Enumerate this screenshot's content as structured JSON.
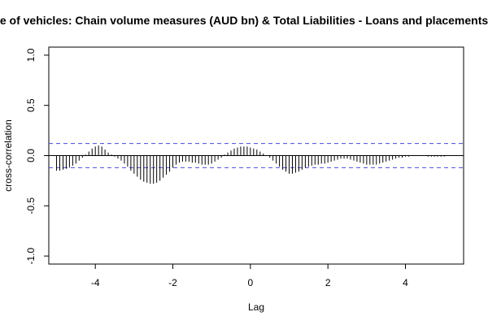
{
  "chart_data": {
    "type": "bar",
    "title": "e of vehicles: Chain volume measures (AUD bn) & Total Liabilities - Loans and placements",
    "xlabel": "Lag",
    "ylabel": "cross-correlation",
    "xlim": [
      -5.2,
      5.5
    ],
    "ylim": [
      -1.08,
      1.08
    ],
    "x_ticks": [
      -4,
      -2,
      0,
      2,
      4
    ],
    "x_tick_labels": [
      "-4",
      "-2",
      "0",
      "2",
      "4"
    ],
    "y_ticks": [
      -1.0,
      -0.5,
      0.0,
      0.5,
      1.0
    ],
    "y_tick_labels": [
      "-1.0",
      "-0.5",
      "0.0",
      "0.5",
      "1.0"
    ],
    "confidence_bound": 0.12,
    "zero_line": true,
    "colors": {
      "bars": "#000000",
      "confidence_lines": "#4a4adb",
      "zero_line": "#000000",
      "frame": "#000000"
    },
    "series": [
      {
        "x": [
          -5.0,
          -4.917,
          -4.833,
          -4.75,
          -4.667,
          -4.583,
          -4.5,
          -4.417,
          -4.333,
          -4.25,
          -4.167,
          -4.083,
          -4.0,
          -3.917,
          -3.833,
          -3.75,
          -3.667,
          -3.583,
          -3.5,
          -3.417,
          -3.333,
          -3.25,
          -3.167,
          -3.083,
          -3.0,
          -2.917,
          -2.833,
          -2.75,
          -2.667,
          -2.583,
          -2.5,
          -2.417,
          -2.333,
          -2.25,
          -2.167,
          -2.083,
          -2.0,
          -1.917,
          -1.833,
          -1.75,
          -1.667,
          -1.583,
          -1.5,
          -1.417,
          -1.333,
          -1.25,
          -1.167,
          -1.083,
          -1.0,
          -0.917,
          -0.833,
          -0.75,
          -0.667,
          -0.583,
          -0.5,
          -0.417,
          -0.333,
          -0.25,
          -0.167,
          -0.083,
          0.0,
          0.083,
          0.167,
          0.25,
          0.333,
          0.417,
          0.5,
          0.583,
          0.667,
          0.75,
          0.833,
          0.917,
          1.0,
          1.083,
          1.167,
          1.25,
          1.333,
          1.417,
          1.5,
          1.583,
          1.667,
          1.75,
          1.833,
          1.917,
          2.0,
          2.083,
          2.167,
          2.25,
          2.333,
          2.417,
          2.5,
          2.583,
          2.667,
          2.75,
          2.833,
          2.917,
          3.0,
          3.083,
          3.167,
          3.25,
          3.333,
          3.417,
          3.5,
          3.583,
          3.667,
          3.75,
          3.833,
          3.917,
          4.0,
          4.083,
          4.167,
          4.25,
          4.333,
          4.417,
          4.5,
          4.583,
          4.667,
          4.75,
          4.833,
          4.917,
          5.0
        ],
        "values": [
          -0.15,
          -0.15,
          -0.14,
          -0.13,
          -0.12,
          -0.1,
          -0.08,
          -0.05,
          -0.02,
          0.01,
          0.04,
          0.07,
          0.09,
          0.1,
          0.09,
          0.06,
          0.03,
          0.01,
          -0.01,
          -0.03,
          -0.05,
          -0.08,
          -0.11,
          -0.15,
          -0.18,
          -0.21,
          -0.24,
          -0.26,
          -0.27,
          -0.28,
          -0.28,
          -0.27,
          -0.25,
          -0.22,
          -0.19,
          -0.16,
          -0.12,
          -0.09,
          -0.07,
          -0.06,
          -0.06,
          -0.06,
          -0.07,
          -0.07,
          -0.08,
          -0.09,
          -0.09,
          -0.09,
          -0.08,
          -0.06,
          -0.04,
          -0.02,
          0.01,
          0.03,
          0.05,
          0.07,
          0.08,
          0.09,
          0.09,
          0.09,
          0.08,
          0.07,
          0.06,
          0.04,
          0.02,
          0.0,
          -0.02,
          -0.05,
          -0.08,
          -0.11,
          -0.14,
          -0.16,
          -0.18,
          -0.18,
          -0.17,
          -0.16,
          -0.14,
          -0.12,
          -0.11,
          -0.1,
          -0.09,
          -0.09,
          -0.08,
          -0.08,
          -0.07,
          -0.06,
          -0.05,
          -0.04,
          -0.03,
          -0.03,
          -0.03,
          -0.04,
          -0.05,
          -0.06,
          -0.07,
          -0.08,
          -0.09,
          -0.09,
          -0.09,
          -0.09,
          -0.08,
          -0.07,
          -0.06,
          -0.05,
          -0.04,
          -0.03,
          -0.02,
          -0.02,
          -0.01,
          -0.01,
          0.0,
          0.0,
          0.0,
          0.0,
          0.0,
          -0.01,
          -0.01,
          -0.01,
          -0.01,
          -0.01,
          -0.01
        ]
      }
    ]
  }
}
